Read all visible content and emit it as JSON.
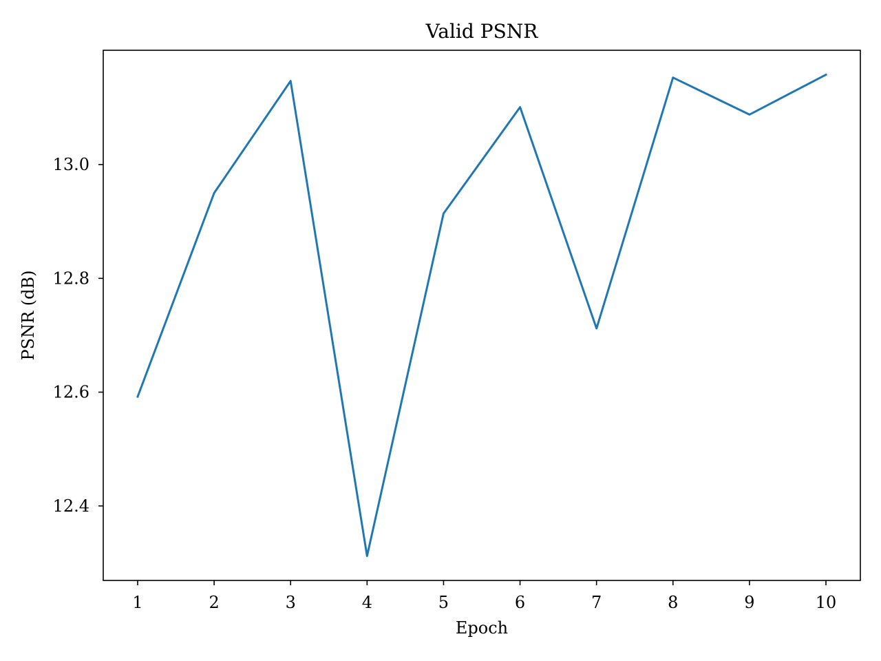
{
  "chart_data": {
    "type": "line",
    "title": "Valid PSNR",
    "xlabel": "Epoch",
    "ylabel": "PSNR (dB)",
    "x": [
      1,
      2,
      3,
      4,
      5,
      6,
      7,
      8,
      9,
      10
    ],
    "series": [
      {
        "values": [
          12.592,
          12.95,
          13.147,
          12.312,
          12.914,
          13.101,
          12.712,
          13.153,
          13.088,
          13.158
        ],
        "color": "#1f77b4"
      }
    ],
    "xticks": [
      1,
      2,
      3,
      4,
      5,
      6,
      7,
      8,
      9,
      10
    ],
    "yticks": [
      "12.4",
      "12.6",
      "12.8",
      "13.0"
    ],
    "xlim": [
      0.55,
      10.45
    ],
    "ylim": [
      12.269,
      13.201
    ],
    "grid": false,
    "legend": "none"
  }
}
